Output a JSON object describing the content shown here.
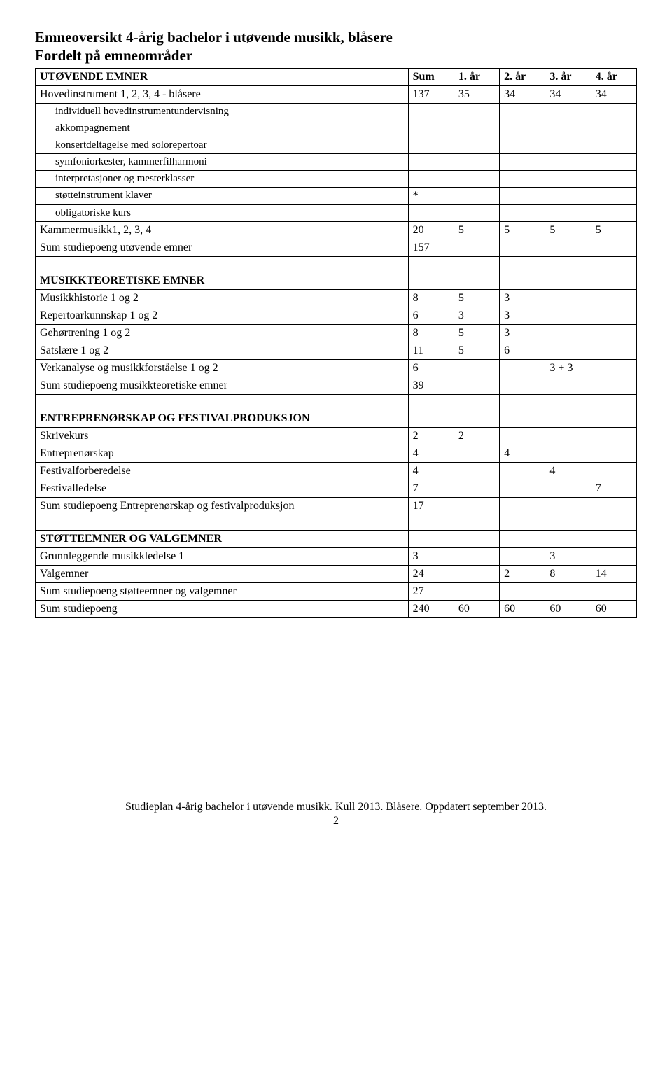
{
  "title_line1": "Emneoversikt 4-årig bachelor i utøvende musikk, blåsere",
  "title_line2": "Fordelt på emneområder",
  "headers": {
    "label": "UTØVENDE EMNER",
    "c1": "Sum",
    "c2": "1. år",
    "c3": "2. år",
    "c4": "3. år",
    "c5": "4. år"
  },
  "rows": {
    "hovedinstrument": {
      "label": "Hovedinstrument 1, 2, 3, 4 - blåsere",
      "c1": "137",
      "c2": "35",
      "c3": "34",
      "c4": "34",
      "c5": "34"
    },
    "indiv": {
      "label": "individuell hovedinstrumentundervisning"
    },
    "akkomp": {
      "label": "akkompagnement"
    },
    "konsert": {
      "label": "konsertdeltagelse med solorepertoar"
    },
    "symfoni": {
      "label": "symfoniorkester, kammerfilharmoni"
    },
    "interp": {
      "label": "interpretasjoner og mesterklasser"
    },
    "stotte_klaver": {
      "label": "støtteinstrument klaver",
      "c1": "*"
    },
    "oblig": {
      "label": "obligatoriske kurs"
    },
    "kammermusikk": {
      "label": "Kammermusikk1, 2, 3, 4",
      "c1": "20",
      "c2": "5",
      "c3": "5",
      "c4": "5",
      "c5": "5"
    },
    "sum_utovende": {
      "label": "Sum studiepoeng utøvende emner",
      "c1": "157"
    },
    "musikkteoretiske_header": {
      "label": "MUSIKKTEORETISKE EMNER"
    },
    "musikkhistorie": {
      "label": "Musikkhistorie 1 og 2",
      "c1": "8",
      "c2": "5",
      "c3": "3"
    },
    "repertoar": {
      "label": "Repertoarkunnskap 1 og 2",
      "c1": "6",
      "c2": "3",
      "c3": "3"
    },
    "gehor": {
      "label": "Gehørtrening 1 og 2",
      "c1": "8",
      "c2": "5",
      "c3": "3"
    },
    "satslaere": {
      "label": "Satslære 1 og 2",
      "c1": "11",
      "c2": "5",
      "c3": "6"
    },
    "verkanalyse": {
      "label": "Verkanalyse og musikkforståelse 1 og 2",
      "c1": "6",
      "c4": "3 + 3"
    },
    "sum_musikkteoretiske": {
      "label": "Sum studiepoeng musikkteoretiske emner",
      "c1": "39"
    },
    "entreprenor_header": {
      "label": "ENTREPRENØRSKAP OG FESTIVALPRODUKSJON"
    },
    "skrivekurs": {
      "label": "Skrivekurs",
      "c1": "2",
      "c2": "2"
    },
    "entreprenorskap": {
      "label": "Entreprenørskap",
      "c1": "4",
      "c3": "4"
    },
    "festivalforberedelse": {
      "label": "Festivalforberedelse",
      "c1": "4",
      "c4": "4"
    },
    "festivalledelse": {
      "label": "Festivalledelse",
      "c1": "7",
      "c5": "7"
    },
    "sum_entreprenor": {
      "label": "Sum studiepoeng Entreprenørskap og festivalproduksjon",
      "c1": "17"
    },
    "stotte_header": {
      "label": "STØTTEEMNER OG VALGEMNER"
    },
    "grunnleggende": {
      "label": "Grunnleggende musikkledelse 1",
      "c1": "3",
      "c4": "3"
    },
    "valgemner": {
      "label": "Valgemner",
      "c1": "24",
      "c3": "2",
      "c4": "8",
      "c5": "14"
    },
    "sum_stotte": {
      "label": "Sum studiepoeng støtteemner og valgemner",
      "c1": "27"
    },
    "sum_total": {
      "label": "Sum studiepoeng",
      "c1": "240",
      "c2": "60",
      "c3": "60",
      "c4": "60",
      "c5": "60"
    }
  },
  "footer_line1": "Studieplan 4-årig bachelor i utøvende musikk. Kull 2013. Blåsere. Oppdatert september 2013.",
  "footer_line2": "2"
}
